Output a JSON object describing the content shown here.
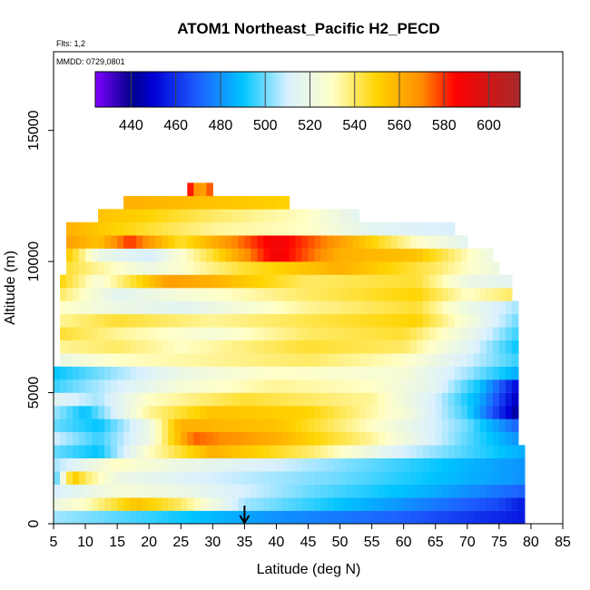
{
  "chart_data": {
    "type": "heatmap",
    "title": "ATOM1 Northeast_Pacific H2_PECD",
    "annotations": [
      "Flts: 1,2",
      "MMDD: 0729,0801"
    ],
    "xlabel": "Latitude (deg N)",
    "ylabel": "Altitude (m)",
    "xlim": [
      5,
      85
    ],
    "ylim": [
      0,
      18000
    ],
    "x_ticks": [
      5,
      10,
      15,
      20,
      25,
      30,
      35,
      40,
      45,
      50,
      55,
      60,
      65,
      70,
      75,
      80,
      85
    ],
    "y_ticks": [
      0,
      5000,
      10000,
      15000
    ],
    "colorbar": {
      "range": [
        424,
        614
      ],
      "ticks": [
        440,
        460,
        480,
        500,
        520,
        540,
        560,
        580,
        600
      ],
      "colors": [
        {
          "v": 424,
          "c": "#7f00ff"
        },
        {
          "v": 440,
          "c": "#00008b"
        },
        {
          "v": 450,
          "c": "#0000d6"
        },
        {
          "v": 470,
          "c": "#1e5fff"
        },
        {
          "v": 490,
          "c": "#00c5ff"
        },
        {
          "v": 510,
          "c": "#d9f0ff"
        },
        {
          "v": 530,
          "c": "#ffffc8"
        },
        {
          "v": 550,
          "c": "#ffd400"
        },
        {
          "v": 570,
          "c": "#ff8c00"
        },
        {
          "v": 585,
          "c": "#ff0000"
        },
        {
          "v": 614,
          "c": "#a52a2a"
        }
      ]
    },
    "grid": false,
    "marker": {
      "x": 35,
      "y": 0,
      "shape": "down-arrow"
    },
    "layers": [
      {
        "y": [
          0,
          500
        ],
        "x": [
          5,
          79
        ],
        "vals": [
          [
            5,
            505
          ],
          [
            20,
            495
          ],
          [
            40,
            480
          ],
          [
            60,
            470
          ],
          [
            79,
            455
          ]
        ]
      },
      {
        "y": [
          500,
          1000
        ],
        "x": [
          5,
          79
        ],
        "vals": [
          [
            5,
            520
          ],
          [
            10,
            530
          ],
          [
            18,
            555
          ],
          [
            25,
            540
          ],
          [
            35,
            505
          ],
          [
            55,
            485
          ],
          [
            75,
            465
          ],
          [
            79,
            455
          ]
        ]
      },
      {
        "y": [
          1000,
          1500
        ],
        "x": [
          5,
          79
        ],
        "vals": [
          [
            5,
            510
          ],
          [
            15,
            525
          ],
          [
            25,
            520
          ],
          [
            45,
            500
          ],
          [
            65,
            485
          ],
          [
            79,
            470
          ]
        ]
      },
      {
        "y": [
          1500,
          2000
        ],
        "x": [
          5,
          79
        ],
        "vals": [
          [
            5,
            490
          ],
          [
            8,
            555
          ],
          [
            10,
            540
          ],
          [
            15,
            520
          ],
          [
            30,
            510
          ],
          [
            50,
            500
          ],
          [
            79,
            480
          ]
        ]
      },
      {
        "y": [
          2000,
          2500
        ],
        "x": [
          5,
          79
        ],
        "vals": [
          [
            5,
            505
          ],
          [
            15,
            530
          ],
          [
            25,
            520
          ],
          [
            40,
            510
          ],
          [
            60,
            495
          ],
          [
            79,
            480
          ]
        ]
      },
      {
        "y": [
          2500,
          3000
        ],
        "x": [
          5,
          79
        ],
        "vals": [
          [
            5,
            500
          ],
          [
            12,
            490
          ],
          [
            20,
            530
          ],
          [
            30,
            560
          ],
          [
            45,
            540
          ],
          [
            60,
            510
          ],
          [
            79,
            485
          ]
        ]
      },
      {
        "y": [
          3000,
          3500
        ],
        "x": [
          5,
          78
        ],
        "vals": [
          [
            5,
            510
          ],
          [
            12,
            495
          ],
          [
            20,
            520
          ],
          [
            27,
            575
          ],
          [
            40,
            560
          ],
          [
            55,
            535
          ],
          [
            65,
            510
          ],
          [
            78,
            480
          ]
        ]
      },
      {
        "y": [
          3500,
          4000
        ],
        "x": [
          5,
          78
        ],
        "vals": [
          [
            5,
            500
          ],
          [
            12,
            490
          ],
          [
            20,
            520
          ],
          [
            25,
            560
          ],
          [
            40,
            555
          ],
          [
            55,
            530
          ],
          [
            70,
            500
          ],
          [
            78,
            470
          ]
        ]
      },
      {
        "y": [
          4000,
          4500
        ],
        "x": [
          5,
          78
        ],
        "vals": [
          [
            5,
            505
          ],
          [
            10,
            490
          ],
          [
            20,
            535
          ],
          [
            30,
            555
          ],
          [
            45,
            550
          ],
          [
            60,
            525
          ],
          [
            70,
            495
          ],
          [
            78,
            440
          ]
        ]
      },
      {
        "y": [
          4500,
          5000
        ],
        "x": [
          5,
          78
        ],
        "vals": [
          [
            5,
            515
          ],
          [
            12,
            505
          ],
          [
            20,
            530
          ],
          [
            35,
            545
          ],
          [
            55,
            535
          ],
          [
            65,
            510
          ],
          [
            72,
            485
          ],
          [
            78,
            445
          ]
        ]
      },
      {
        "y": [
          5000,
          5500
        ],
        "x": [
          5,
          78
        ],
        "vals": [
          [
            5,
            495
          ],
          [
            15,
            510
          ],
          [
            25,
            525
          ],
          [
            40,
            535
          ],
          [
            55,
            530
          ],
          [
            65,
            515
          ],
          [
            72,
            490
          ],
          [
            78,
            450
          ]
        ]
      },
      {
        "y": [
          5500,
          6000
        ],
        "x": [
          5,
          78
        ],
        "vals": [
          [
            5,
            490
          ],
          [
            15,
            505
          ],
          [
            25,
            520
          ],
          [
            40,
            530
          ],
          [
            60,
            525
          ],
          [
            70,
            505
          ],
          [
            78,
            485
          ]
        ]
      },
      {
        "y": [
          6000,
          6500
        ],
        "x": [
          6,
          78
        ],
        "vals": [
          [
            6,
            520
          ],
          [
            15,
            530
          ],
          [
            30,
            535
          ],
          [
            45,
            540
          ],
          [
            60,
            530
          ],
          [
            70,
            510
          ],
          [
            78,
            495
          ]
        ]
      },
      {
        "y": [
          6500,
          7000
        ],
        "x": [
          6,
          78
        ],
        "vals": [
          [
            6,
            535
          ],
          [
            15,
            540
          ],
          [
            25,
            530
          ],
          [
            45,
            545
          ],
          [
            60,
            540
          ],
          [
            70,
            515
          ],
          [
            78,
            490
          ]
        ]
      },
      {
        "y": [
          7000,
          7500
        ],
        "x": [
          6,
          78
        ],
        "vals": [
          [
            6,
            545
          ],
          [
            15,
            535
          ],
          [
            30,
            525
          ],
          [
            45,
            540
          ],
          [
            60,
            545
          ],
          [
            70,
            520
          ],
          [
            78,
            495
          ]
        ]
      },
      {
        "y": [
          7500,
          8000
        ],
        "x": [
          6,
          78
        ],
        "vals": [
          [
            6,
            535
          ],
          [
            15,
            545
          ],
          [
            30,
            535
          ],
          [
            50,
            545
          ],
          [
            62,
            550
          ],
          [
            70,
            525
          ],
          [
            78,
            500
          ]
        ]
      },
      {
        "y": [
          8000,
          8500
        ],
        "x": [
          6,
          78
        ],
        "vals": [
          [
            6,
            530
          ],
          [
            15,
            520
          ],
          [
            25,
            515
          ],
          [
            45,
            535
          ],
          [
            62,
            545
          ],
          [
            70,
            520
          ],
          [
            78,
            505
          ]
        ]
      },
      {
        "y": [
          8500,
          9000
        ],
        "x": [
          6,
          77
        ],
        "vals": [
          [
            6,
            540
          ],
          [
            15,
            515
          ],
          [
            25,
            525
          ],
          [
            45,
            540
          ],
          [
            62,
            550
          ],
          [
            70,
            530
          ],
          [
            77,
            540
          ]
        ]
      },
      {
        "y": [
          9000,
          9500
        ],
        "x": [
          6,
          77
        ],
        "vals": [
          [
            6,
            550
          ],
          [
            12,
            525
          ],
          [
            23,
            565
          ],
          [
            30,
            560
          ],
          [
            45,
            540
          ],
          [
            62,
            545
          ],
          [
            70,
            520
          ],
          [
            77,
            515
          ]
        ]
      },
      {
        "y": [
          9500,
          10000
        ],
        "x": [
          7,
          75
        ],
        "vals": [
          [
            7,
            545
          ],
          [
            12,
            535
          ],
          [
            20,
            520
          ],
          [
            35,
            545
          ],
          [
            50,
            560
          ],
          [
            65,
            540
          ],
          [
            75,
            520
          ]
        ]
      },
      {
        "y": [
          10000,
          10500
        ],
        "x": [
          7,
          74
        ],
        "vals": [
          [
            7,
            555
          ],
          [
            12,
            520
          ],
          [
            20,
            510
          ],
          [
            30,
            545
          ],
          [
            40,
            590
          ],
          [
            50,
            560
          ],
          [
            62,
            555
          ],
          [
            74,
            520
          ]
        ]
      },
      {
        "y": [
          10500,
          11000
        ],
        "x": [
          7,
          70
        ],
        "vals": [
          [
            7,
            565
          ],
          [
            12,
            555
          ],
          [
            17,
            580
          ],
          [
            25,
            545
          ],
          [
            40,
            590
          ],
          [
            50,
            565
          ],
          [
            62,
            530
          ],
          [
            70,
            515
          ]
        ]
      },
      {
        "y": [
          11000,
          11500
        ],
        "x": [
          7,
          68
        ],
        "vals": [
          [
            7,
            560
          ],
          [
            15,
            550
          ],
          [
            30,
            535
          ],
          [
            45,
            530
          ],
          [
            55,
            515
          ],
          [
            68,
            510
          ]
        ]
      },
      {
        "y": [
          11500,
          12000
        ],
        "x": [
          12,
          53
        ],
        "vals": [
          [
            12,
            555
          ],
          [
            20,
            550
          ],
          [
            30,
            540
          ],
          [
            45,
            530
          ],
          [
            53,
            515
          ]
        ]
      },
      {
        "y": [
          12000,
          12500
        ],
        "x": [
          16,
          42
        ],
        "vals": [
          [
            16,
            560
          ],
          [
            30,
            555
          ],
          [
            42,
            550
          ]
        ]
      },
      {
        "y": [
          12500,
          13000
        ],
        "x": [
          26,
          30
        ],
        "vals": [
          [
            26,
            590
          ],
          [
            28,
            560
          ],
          [
            30,
            580
          ]
        ]
      }
    ]
  }
}
